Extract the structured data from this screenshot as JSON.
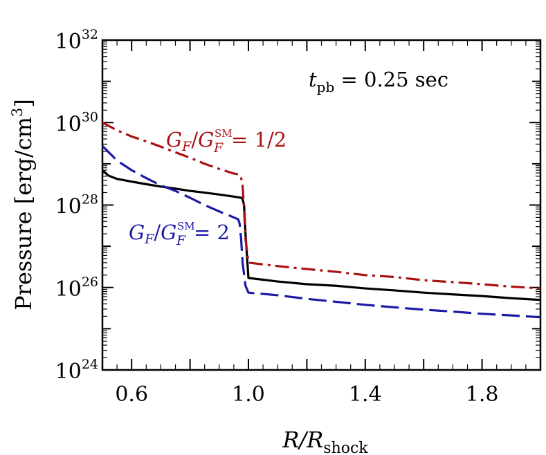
{
  "chart_data": {
    "type": "line",
    "xlabel": {
      "main": "R/R",
      "sub": "shock"
    },
    "ylabel": "Pressure  [erg/cm",
    "ylabel_exp": "3",
    "ylabel_close": "]",
    "xlim": [
      0.5,
      2.0
    ],
    "ylim_log10": [
      24,
      32
    ],
    "y_scale": "log",
    "grid": false,
    "x_ticks": [
      0.6,
      1.0,
      1.4,
      1.8
    ],
    "x_tick_labels": [
      "0.6",
      "1.0",
      "1.4",
      "1.8"
    ],
    "y_ticks_log10": [
      24,
      26,
      28,
      30,
      32
    ],
    "y_tick_base": "10",
    "y_tick_exps": [
      "24",
      "26",
      "28",
      "30",
      "32"
    ],
    "annotations": {
      "time": {
        "t": "t",
        "sub": "pb",
        "rest": " = 0.25 sec"
      },
      "half": {
        "g1": "G",
        "s1": "F",
        "slash": "/",
        "g2": "G",
        "sup": "SM",
        "sub": "F",
        "rest": "= 1/2"
      },
      "two": {
        "g1": "G",
        "s1": "F",
        "slash": "/",
        "g2": "G",
        "sup": "SM",
        "sub": "F",
        "rest": "= 2"
      }
    },
    "series": [
      {
        "color": "#000000",
        "style": "solid",
        "x": [
          0.5,
          0.52,
          0.55,
          0.6,
          0.65,
          0.7,
          0.75,
          0.8,
          0.85,
          0.9,
          0.95,
          0.975,
          0.98,
          0.985,
          0.99,
          1.0,
          1.1,
          1.2,
          1.3,
          1.4,
          1.5,
          1.6,
          1.7,
          1.8,
          1.9,
          2.0
        ],
        "y": [
          7e+28,
          5.2e+28,
          4.3e+28,
          3.7e+28,
          3.2e+28,
          2.8e+28,
          2.5e+28,
          2.2e+28,
          2e+28,
          1.8e+28,
          1.6e+28,
          1.5e+28,
          1.4e+28,
          1e+28,
          2e+27,
          1.7e+26,
          1.4e+26,
          1.2e+26,
          1.1e+26,
          9.5e+25,
          8.5e+25,
          7.5e+25,
          6.8e+25,
          6.2e+25,
          5.5e+25,
          5e+25
        ]
      },
      {
        "color": "#aa1111",
        "style": "dashdot",
        "x": [
          0.5,
          0.55,
          0.6,
          0.65,
          0.7,
          0.75,
          0.8,
          0.85,
          0.9,
          0.95,
          0.97,
          0.975,
          0.98,
          0.985,
          0.99,
          1.0,
          1.1,
          1.2,
          1.3,
          1.4,
          1.5,
          1.6,
          1.7,
          1.8,
          1.9,
          2.0
        ],
        "y": [
          1e+30,
          6.5e+29,
          4.6e+29,
          3.5e+29,
          2.6e+29,
          1.9e+29,
          1.4e+29,
          1e+29,
          7.5e+28,
          5.8e+28,
          5.5e+28,
          4.5e+28,
          3e+28,
          8e+27,
          1.5e+27,
          4e+26,
          3.3e+26,
          2.8e+26,
          2.4e+26,
          2e+26,
          1.8e+26,
          1.5e+26,
          1.35e+26,
          1.2e+26,
          1.05e+26,
          9.5e+25
        ]
      },
      {
        "color": "#1a1aa6",
        "style": "dashed",
        "x": [
          0.5,
          0.55,
          0.6,
          0.65,
          0.7,
          0.75,
          0.8,
          0.85,
          0.9,
          0.95,
          0.965,
          0.97,
          0.975,
          0.98,
          0.99,
          1.0,
          1.1,
          1.2,
          1.3,
          1.4,
          1.5,
          1.6,
          1.7,
          1.8,
          1.9,
          2.0
        ],
        "y": [
          2.7e+29,
          1.2e+29,
          7e+28,
          4.5e+28,
          3e+28,
          2.2e+28,
          1.5e+28,
          1e+28,
          7e+27,
          5e+27,
          4.5e+27,
          3.5e+27,
          1.5e+27,
          4e+26,
          1.1e+26,
          7.5e+25,
          6.5e+25,
          5.3e+25,
          4.5e+25,
          3.8e+25,
          3.3e+25,
          2.9e+25,
          2.6e+25,
          2.3e+25,
          2.1e+25,
          1.9e+25
        ]
      }
    ]
  }
}
